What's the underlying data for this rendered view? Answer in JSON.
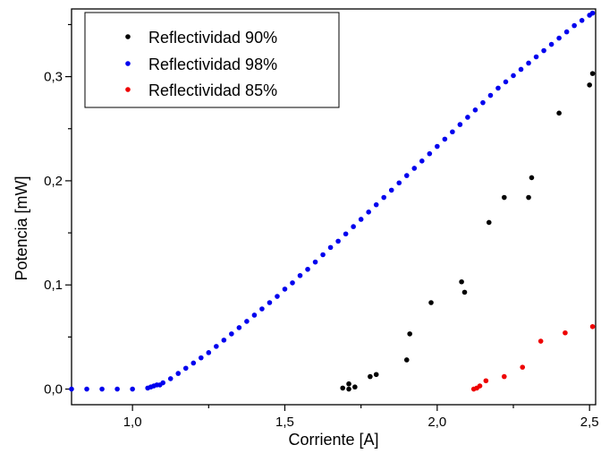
{
  "chart_data": {
    "type": "scatter",
    "title": "",
    "xlabel": "Corriente [A]",
    "ylabel": "Potencia [mW]",
    "xlim": [
      0.8,
      2.52
    ],
    "ylim": [
      -0.015,
      0.365
    ],
    "x_ticks": [
      1.0,
      1.5,
      2.0,
      2.5
    ],
    "x_tick_labels": [
      "1,0",
      "1,5",
      "2,0",
      "2,5"
    ],
    "y_ticks": [
      0.0,
      0.1,
      0.2,
      0.3
    ],
    "y_tick_labels": [
      "0,0",
      "0,1",
      "0,2",
      "0,3"
    ],
    "grid": false,
    "legend_position": "top-left",
    "series": [
      {
        "name": "Reflectividad 90%",
        "color": "#000000",
        "points": [
          [
            1.69,
            0.001
          ],
          [
            1.71,
            0.005
          ],
          [
            1.71,
            0.0
          ],
          [
            1.73,
            0.002
          ],
          [
            1.78,
            0.012
          ],
          [
            1.8,
            0.014
          ],
          [
            1.9,
            0.028
          ],
          [
            1.91,
            0.053
          ],
          [
            1.98,
            0.083
          ],
          [
            2.08,
            0.103
          ],
          [
            2.09,
            0.093
          ],
          [
            2.17,
            0.16
          ],
          [
            2.22,
            0.184
          ],
          [
            2.3,
            0.184
          ],
          [
            2.31,
            0.203
          ],
          [
            2.4,
            0.265
          ],
          [
            2.5,
            0.292
          ],
          [
            2.51,
            0.303
          ]
        ]
      },
      {
        "name": "Reflectividad 98%",
        "color": "#0000ee",
        "points": [
          [
            0.8,
            0.0
          ],
          [
            0.85,
            0.0
          ],
          [
            0.9,
            0.0
          ],
          [
            0.95,
            0.0
          ],
          [
            1.0,
            0.0
          ],
          [
            1.05,
            0.001
          ],
          [
            1.06,
            0.002
          ],
          [
            1.07,
            0.003
          ],
          [
            1.08,
            0.004
          ],
          [
            1.09,
            0.004
          ],
          [
            1.1,
            0.006
          ],
          [
            1.125,
            0.01
          ],
          [
            1.15,
            0.015
          ],
          [
            1.175,
            0.02
          ],
          [
            1.2,
            0.025
          ],
          [
            1.225,
            0.03
          ],
          [
            1.25,
            0.035
          ],
          [
            1.275,
            0.041
          ],
          [
            1.3,
            0.047
          ],
          [
            1.325,
            0.053
          ],
          [
            1.35,
            0.059
          ],
          [
            1.375,
            0.065
          ],
          [
            1.4,
            0.071
          ],
          [
            1.425,
            0.077
          ],
          [
            1.45,
            0.083
          ],
          [
            1.475,
            0.089
          ],
          [
            1.5,
            0.096
          ],
          [
            1.525,
            0.102
          ],
          [
            1.55,
            0.109
          ],
          [
            1.575,
            0.115
          ],
          [
            1.6,
            0.122
          ],
          [
            1.625,
            0.129
          ],
          [
            1.65,
            0.136
          ],
          [
            1.675,
            0.142
          ],
          [
            1.7,
            0.149
          ],
          [
            1.725,
            0.156
          ],
          [
            1.75,
            0.163
          ],
          [
            1.775,
            0.17
          ],
          [
            1.8,
            0.177
          ],
          [
            1.825,
            0.184
          ],
          [
            1.85,
            0.191
          ],
          [
            1.875,
            0.198
          ],
          [
            1.9,
            0.205
          ],
          [
            1.925,
            0.212
          ],
          [
            1.95,
            0.219
          ],
          [
            1.975,
            0.226
          ],
          [
            2.0,
            0.233
          ],
          [
            2.025,
            0.24
          ],
          [
            2.05,
            0.247
          ],
          [
            2.075,
            0.254
          ],
          [
            2.1,
            0.261
          ],
          [
            2.125,
            0.268
          ],
          [
            2.15,
            0.275
          ],
          [
            2.175,
            0.282
          ],
          [
            2.2,
            0.289
          ],
          [
            2.225,
            0.295
          ],
          [
            2.25,
            0.301
          ],
          [
            2.275,
            0.307
          ],
          [
            2.3,
            0.313
          ],
          [
            2.325,
            0.319
          ],
          [
            2.35,
            0.325
          ],
          [
            2.375,
            0.331
          ],
          [
            2.4,
            0.337
          ],
          [
            2.425,
            0.343
          ],
          [
            2.45,
            0.349
          ],
          [
            2.475,
            0.354
          ],
          [
            2.5,
            0.359
          ],
          [
            2.51,
            0.361
          ]
        ]
      },
      {
        "name": "Reflectividad 85%",
        "color": "#ee0000",
        "points": [
          [
            2.12,
            0.0
          ],
          [
            2.13,
            0.001
          ],
          [
            2.14,
            0.003
          ],
          [
            2.16,
            0.008
          ],
          [
            2.22,
            0.012
          ],
          [
            2.28,
            0.021
          ],
          [
            2.34,
            0.046
          ],
          [
            2.42,
            0.054
          ],
          [
            2.51,
            0.06
          ]
        ]
      }
    ]
  }
}
